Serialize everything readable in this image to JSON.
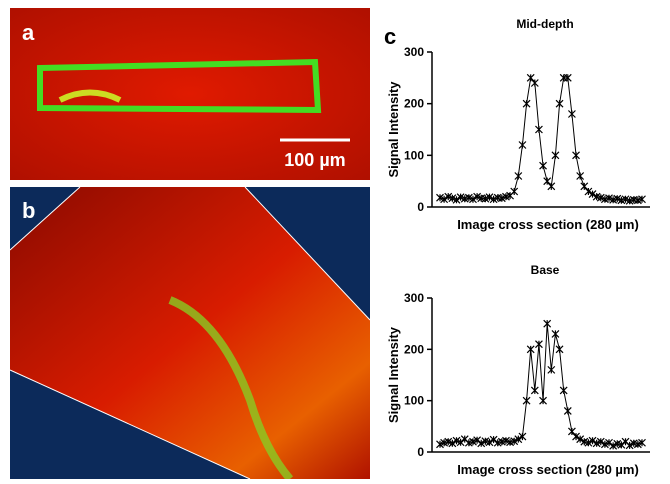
{
  "panels": {
    "a": {
      "label": "a",
      "scale_bar": "100 µm"
    },
    "b": {
      "label": "b"
    },
    "c": {
      "label": "c"
    }
  },
  "chart_data": [
    {
      "type": "line",
      "title": "Mid-depth",
      "ylabel": "Signal Intensity",
      "xlabel": "Image cross section (280 µm)",
      "ylim": [
        0,
        300
      ],
      "yticks": [
        0,
        100,
        200,
        300
      ],
      "color": "#000000",
      "values": [
        18,
        15,
        20,
        17,
        14,
        19,
        16,
        18,
        15,
        20,
        17,
        16,
        19,
        15,
        18,
        17,
        20,
        22,
        30,
        60,
        120,
        200,
        250,
        240,
        150,
        80,
        50,
        40,
        100,
        200,
        250,
        250,
        180,
        100,
        60,
        40,
        30,
        25,
        20,
        18,
        15,
        17,
        14,
        16,
        13,
        15,
        12,
        14,
        13,
        15
      ]
    },
    {
      "type": "line",
      "title": "Base",
      "ylabel": "Signal Intensity",
      "xlabel": "Image cross section (280 µm)",
      "ylim": [
        0,
        300
      ],
      "yticks": [
        0,
        100,
        200,
        300
      ],
      "color": "#000000",
      "values": [
        15,
        18,
        20,
        17,
        22,
        19,
        25,
        18,
        20,
        23,
        17,
        21,
        19,
        24,
        18,
        20,
        22,
        19,
        21,
        25,
        30,
        100,
        200,
        120,
        210,
        100,
        250,
        160,
        230,
        200,
        120,
        80,
        40,
        30,
        25,
        20,
        18,
        22,
        17,
        20,
        15,
        18,
        12,
        16,
        14,
        20,
        13,
        17,
        15,
        18
      ]
    }
  ]
}
